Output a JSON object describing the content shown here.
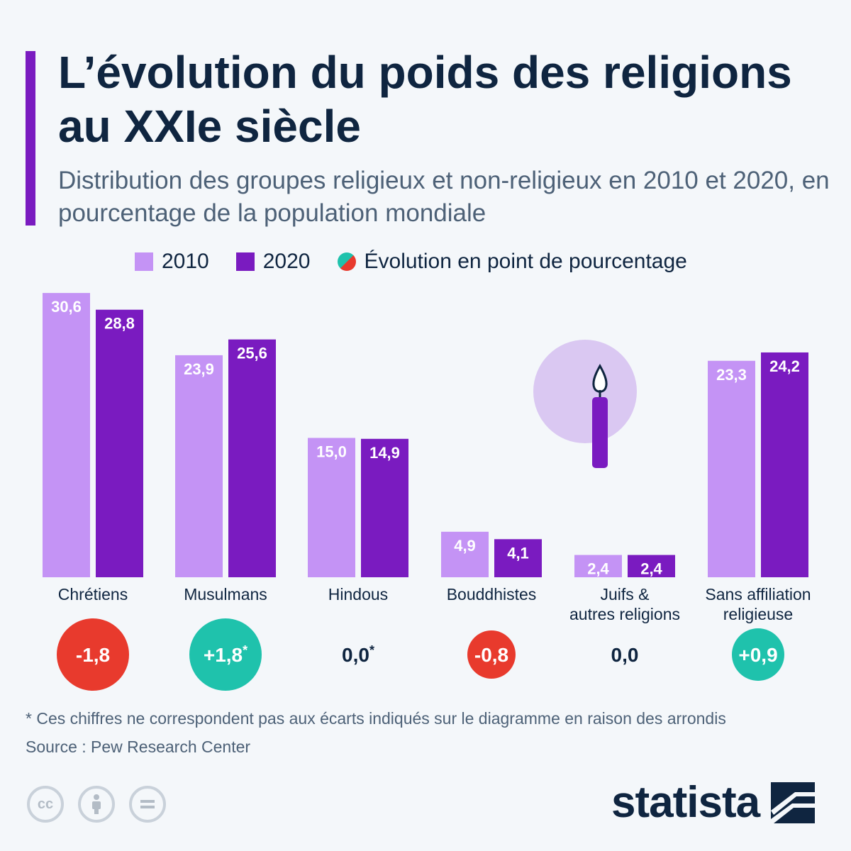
{
  "header": {
    "title": "L’évolution du poids des religions au XXIe siècle",
    "subtitle": "Distribution des groupes religieux et non-religieux en 2010 et 2020, en pourcentage de la population mondiale"
  },
  "legend": {
    "label_2010": "2010",
    "label_2020": "2020",
    "label_change": "Évolution en point de pourcentage"
  },
  "colors": {
    "series_2010": "#c493f5",
    "series_2020": "#7a1bc0",
    "positive": "#1fc2ac",
    "negative": "#e83a2d",
    "text_dark": "#0f2540"
  },
  "chart_data": {
    "type": "bar",
    "title": "L’évolution du poids des religions au XXIe siècle",
    "categories": [
      [
        "Chrétiens"
      ],
      [
        "Musulmans"
      ],
      [
        "Hindous"
      ],
      [
        "Bouddhistes"
      ],
      [
        "Juifs &",
        "autres religions"
      ],
      [
        "Sans affiliation",
        "religieuse"
      ]
    ],
    "series": [
      {
        "name": "2010",
        "values": [
          30.6,
          23.9,
          15.0,
          4.9,
          2.4,
          23.3
        ],
        "labels": [
          "30,6",
          "23,9",
          "15,0",
          "4,9",
          "2,4",
          "23,3"
        ]
      },
      {
        "name": "2020",
        "values": [
          28.8,
          25.6,
          14.9,
          4.1,
          2.4,
          24.2
        ],
        "labels": [
          "28,8",
          "25,6",
          "14,9",
          "4,1",
          "2,4",
          "24,2"
        ]
      }
    ],
    "change": {
      "name": "Évolution en point de pourcentage",
      "values": [
        -1.8,
        1.8,
        0.0,
        -0.8,
        0.0,
        0.9
      ],
      "labels": [
        "-1,8",
        "+1,8",
        "0,0",
        "-0,8",
        "0,0",
        "+0,9"
      ],
      "asterisk": [
        false,
        true,
        true,
        false,
        false,
        false
      ]
    },
    "ylim": [
      0,
      32
    ],
    "xlabel": "",
    "ylabel": "",
    "grid": false
  },
  "notes": {
    "footnote": "* Ces chiffres ne correspondent pas aux écarts indiqués sur le diagramme en raison des arrondis",
    "source": "Source : Pew Research Center"
  },
  "branding": {
    "logo_text": "statista",
    "icons": [
      "creative-commons-icon",
      "attribution-icon",
      "no-derivatives-icon"
    ]
  }
}
